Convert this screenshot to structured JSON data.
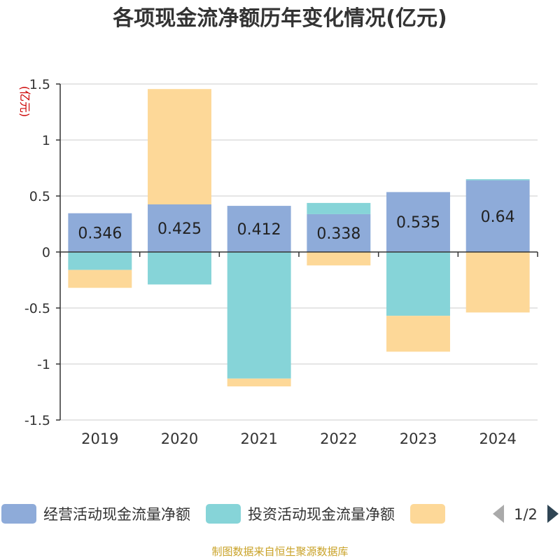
{
  "chart_data": {
    "type": "bar",
    "stacked": true,
    "title": "各项现金流净额历年变化情况(亿元)",
    "ylabel": "(亿元)",
    "categories": [
      "2019",
      "2020",
      "2021",
      "2022",
      "2023",
      "2024"
    ],
    "ylim": [
      -1.5,
      1.5
    ],
    "yticks": [
      1.5,
      1,
      0.5,
      0,
      -0.5,
      -1,
      -1.5
    ],
    "ytick_labels": [
      "1.5",
      "1",
      "0.5",
      "0",
      "-0.5",
      "-1",
      "-1.5"
    ],
    "series": [
      {
        "name": "经营活动现金流量净额",
        "color": "#8eabd9",
        "values": [
          0.346,
          0.425,
          0.412,
          0.338,
          0.535,
          0.64
        ],
        "labels": [
          "0.346",
          "0.425",
          "0.412",
          "0.338",
          "0.535",
          "0.64"
        ]
      },
      {
        "name": "投资活动现金流量净额",
        "color": "#86d4d8",
        "values": [
          -0.16,
          -0.29,
          -1.13,
          0.1,
          -0.57,
          0.01
        ]
      },
      {
        "name": "",
        "color": "#fdd898",
        "values": [
          -0.16,
          1.03,
          -0.07,
          -0.12,
          -0.32,
          -0.54
        ]
      }
    ],
    "legend": {
      "position": "bottom",
      "page_text": "1/2"
    },
    "footer": "制图数据来自恒生聚源数据库",
    "colors": {
      "title": "#333333",
      "axis_text": "#333333",
      "ylabel": "#cc0000",
      "grid": "#cccccc",
      "axis_line": "#333333",
      "footer": "#c9a227",
      "pager_disabled": "#aaaaaa",
      "pager_active": "#2f4554"
    }
  }
}
